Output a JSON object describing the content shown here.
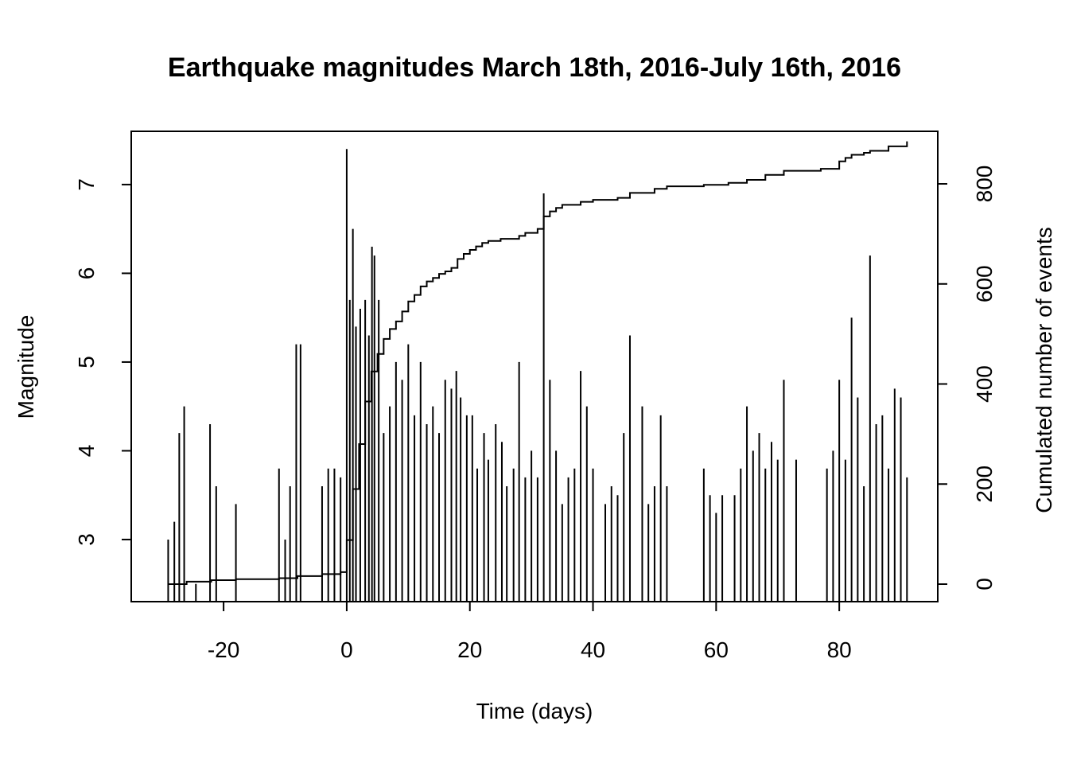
{
  "chart_data": {
    "type": "line",
    "title": "Earthquake magnitudes March 18th, 2016-July 16th, 2016",
    "xlabel": "Time (days)",
    "ylabel": "Magnitude",
    "y2label": "Cumulated number of events",
    "xlim": [
      -35,
      96
    ],
    "ylim": [
      2.3,
      7.6
    ],
    "y2lim": [
      -35,
      905
    ],
    "x_ticks": [
      -20,
      0,
      20,
      40,
      60,
      80
    ],
    "y_ticks": [
      3,
      4,
      5,
      6,
      7
    ],
    "y2_ticks": [
      0,
      200,
      400,
      600,
      800
    ],
    "grid": false,
    "series": [
      {
        "type": "spikes",
        "x": [
          -29,
          -28,
          -27.2,
          -26.4,
          -24.5,
          -22.2,
          -21.2,
          -18,
          -11,
          -10,
          -9.2,
          -8.2,
          -7.5,
          -4,
          -3,
          -2,
          -1,
          0,
          0.5,
          1,
          1.5,
          2.2,
          3,
          3.6,
          4.1,
          4.5,
          5.2,
          6,
          7,
          8,
          9,
          10,
          11,
          12,
          13,
          14,
          15,
          16,
          17,
          17.8,
          18.5,
          19.5,
          20.4,
          21.2,
          22.3,
          23,
          24.2,
          25.2,
          26,
          27.1,
          28,
          29,
          30,
          31,
          32,
          33,
          34,
          35,
          36,
          37,
          38,
          39,
          40,
          42,
          43,
          44,
          45,
          46,
          48,
          49,
          50,
          51,
          52,
          58,
          59,
          60,
          61,
          63,
          64,
          65,
          66,
          67,
          68,
          69,
          70,
          71,
          73,
          78,
          79,
          80,
          81,
          82,
          83,
          84,
          85,
          86,
          87,
          88,
          89,
          90,
          91
        ],
        "values": [
          3.0,
          3.2,
          4.2,
          4.5,
          2.5,
          4.3,
          3.6,
          3.4,
          3.8,
          3.0,
          3.6,
          5.2,
          5.2,
          3.6,
          3.8,
          3.8,
          3.7,
          7.4,
          5.7,
          6.5,
          5.4,
          5.6,
          5.7,
          5.3,
          6.3,
          6.2,
          5.7,
          4.2,
          4.5,
          5.0,
          4.8,
          5.2,
          4.4,
          5.0,
          4.3,
          4.5,
          4.2,
          4.8,
          4.7,
          4.9,
          4.6,
          4.4,
          4.4,
          3.8,
          4.2,
          3.9,
          4.3,
          4.1,
          3.6,
          3.8,
          5.0,
          3.7,
          4.0,
          3.7,
          6.9,
          4.8,
          4.0,
          3.4,
          3.7,
          3.8,
          4.9,
          4.5,
          3.8,
          3.4,
          3.6,
          3.5,
          4.2,
          5.3,
          4.5,
          3.4,
          3.6,
          4.4,
          3.6,
          3.8,
          3.5,
          3.3,
          3.5,
          3.5,
          3.8,
          4.5,
          4.0,
          4.2,
          3.8,
          4.1,
          3.9,
          4.8,
          3.9,
          3.8,
          4.0,
          4.8,
          3.9,
          5.5,
          4.6,
          3.6,
          6.2,
          4.3,
          4.4,
          3.8,
          4.7,
          4.6,
          3.7
        ]
      },
      {
        "type": "step",
        "axis": "right",
        "x": [
          -29,
          -26,
          -22,
          -18,
          -11,
          -8,
          -4,
          -1,
          0,
          1,
          2,
          3,
          4,
          5,
          6,
          7,
          8,
          9,
          10,
          11,
          12,
          13,
          14,
          15,
          16,
          17,
          18,
          19,
          20,
          21,
          22,
          23,
          25,
          28,
          29,
          31,
          32,
          33,
          34,
          35,
          38,
          40,
          44,
          46,
          50,
          52,
          58,
          62,
          65,
          68,
          71,
          77,
          80,
          81,
          82,
          84,
          85,
          88,
          91
        ],
        "values": [
          0,
          5,
          8,
          10,
          12,
          16,
          20,
          24,
          88,
          190,
          280,
          365,
          425,
          460,
          490,
          510,
          525,
          545,
          565,
          578,
          595,
          605,
          612,
          620,
          625,
          632,
          650,
          660,
          668,
          675,
          682,
          686,
          690,
          696,
          702,
          710,
          735,
          745,
          752,
          758,
          764,
          768,
          772,
          782,
          790,
          795,
          798,
          802,
          808,
          818,
          826,
          830,
          845,
          852,
          858,
          862,
          866,
          875,
          885
        ]
      }
    ]
  }
}
